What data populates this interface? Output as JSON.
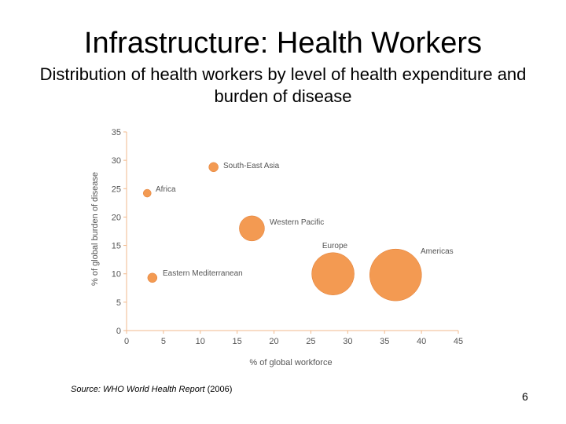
{
  "slide": {
    "title": "Infrastructure: Health Workers",
    "subtitle": "Distribution of health workers by level of health expenditure and burden of disease",
    "source_prefix": "Source: WHO World Health Report",
    "source_year": "(2006)",
    "page_number": "6"
  },
  "chart_data": {
    "type": "scatter",
    "title": "",
    "xlabel": "% of global workforce",
    "ylabel": "% of global burden of disease",
    "xlim": [
      0,
      45
    ],
    "ylim": [
      0,
      35
    ],
    "xticks": [
      "0",
      "5",
      "10",
      "15",
      "20",
      "25",
      "30",
      "35",
      "40",
      "45"
    ],
    "yticks": [
      "0",
      "5",
      "10",
      "15",
      "20",
      "25",
      "30",
      "35"
    ],
    "grid": false,
    "color": "#f39a52",
    "edge_color": "#e07a30",
    "points": [
      {
        "label": "Africa",
        "x": 2.8,
        "y": 24.2
      },
      {
        "label": "South-East Asia",
        "x": 11.8,
        "y": 28.8
      },
      {
        "label": "Western Pacific",
        "x": 17.0,
        "y": 18.0
      },
      {
        "label": "Eastern Mediterranean",
        "x": 3.5,
        "y": 9.3
      },
      {
        "label": "Europe",
        "x": 28.0,
        "y": 10.0
      },
      {
        "label": "Americas",
        "x": 36.5,
        "y": 9.8
      }
    ]
  }
}
